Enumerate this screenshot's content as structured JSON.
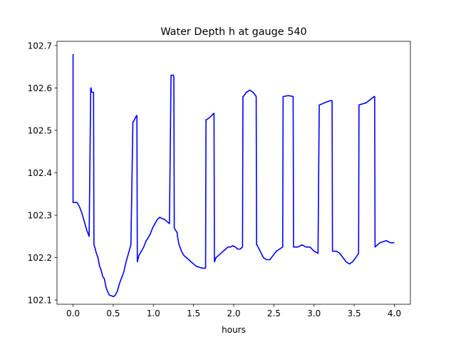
{
  "chart_data": {
    "type": "line",
    "title": "Water Depth h at gauge 540",
    "xlabel": "hours",
    "ylabel": "",
    "xlim": [
      -0.2,
      4.2
    ],
    "ylim": [
      102.09,
      102.71
    ],
    "xticks": [
      0.0,
      0.5,
      1.0,
      1.5,
      2.0,
      2.5,
      3.0,
      3.5,
      4.0
    ],
    "xtick_labels": [
      "0.0",
      "0.5",
      "1.0",
      "1.5",
      "2.0",
      "2.5",
      "3.0",
      "3.5",
      "4.0"
    ],
    "yticks": [
      102.1,
      102.2,
      102.3,
      102.4,
      102.5,
      102.6,
      102.7
    ],
    "ytick_labels": [
      "102.1",
      "102.2",
      "102.3",
      "102.4",
      "102.5",
      "102.6",
      "102.7"
    ],
    "grid": false,
    "line_color": "#0000ff",
    "series": [
      {
        "x": [
          0.0,
          0.0,
          0.01,
          0.05,
          0.08,
          0.11,
          0.14,
          0.17,
          0.2,
          0.22,
          0.225,
          0.23,
          0.255,
          0.26,
          0.27,
          0.29,
          0.31,
          0.33,
          0.35,
          0.37,
          0.39,
          0.41,
          0.43,
          0.45,
          0.47,
          0.48,
          0.5,
          0.52,
          0.55,
          0.58,
          0.61,
          0.63,
          0.66,
          0.69,
          0.72,
          0.745,
          0.75,
          0.79,
          0.795,
          0.8,
          0.82,
          0.85,
          0.88,
          0.91,
          0.93,
          0.96,
          0.99,
          1.02,
          1.05,
          1.08,
          1.11,
          1.14,
          1.17,
          1.2,
          1.22,
          1.25,
          1.255,
          1.26,
          1.29,
          1.295,
          1.3,
          1.32,
          1.35,
          1.38,
          1.41,
          1.44,
          1.47,
          1.5,
          1.53,
          1.56,
          1.59,
          1.62,
          1.65,
          1.655,
          1.66,
          1.7,
          1.75,
          1.755,
          1.76,
          1.78,
          1.81,
          1.84,
          1.87,
          1.9,
          1.93,
          1.96,
          1.99,
          2.02,
          2.05,
          2.08,
          2.11,
          2.115,
          2.12,
          2.16,
          2.2,
          2.24,
          2.28,
          2.285,
          2.29,
          2.33,
          2.37,
          2.41,
          2.45,
          2.49,
          2.53,
          2.57,
          2.61,
          2.615,
          2.62,
          2.68,
          2.74,
          2.745,
          2.75,
          2.8,
          2.85,
          2.9,
          2.95,
          3.0,
          3.05,
          3.065,
          3.07,
          3.13,
          3.2,
          3.225,
          3.23,
          3.28,
          3.32,
          3.36,
          3.4,
          3.44,
          3.48,
          3.52,
          3.555,
          3.56,
          3.65,
          3.75,
          3.755,
          3.76,
          3.82,
          3.9,
          3.95,
          4.0
        ],
        "y": [
          102.68,
          102.33,
          102.33,
          102.33,
          102.32,
          102.305,
          102.285,
          102.265,
          102.25,
          102.6,
          102.6,
          102.59,
          102.59,
          102.23,
          102.225,
          102.21,
          102.2,
          102.18,
          102.17,
          102.155,
          102.15,
          102.13,
          102.12,
          102.112,
          102.11,
          102.11,
          102.108,
          102.11,
          102.12,
          102.14,
          102.155,
          102.165,
          102.19,
          102.21,
          102.23,
          102.52,
          102.52,
          102.535,
          102.535,
          102.19,
          102.205,
          102.215,
          102.225,
          102.24,
          102.245,
          102.255,
          102.27,
          102.28,
          102.29,
          102.295,
          102.292,
          102.29,
          102.285,
          102.28,
          102.63,
          102.63,
          102.625,
          102.27,
          102.26,
          102.26,
          102.25,
          102.23,
          102.215,
          102.205,
          102.2,
          102.195,
          102.19,
          102.185,
          102.18,
          102.178,
          102.176,
          102.175,
          102.175,
          102.525,
          102.525,
          102.53,
          102.54,
          102.54,
          102.19,
          102.2,
          102.205,
          102.21,
          102.215,
          102.22,
          102.225,
          102.225,
          102.228,
          102.225,
          102.22,
          102.22,
          102.225,
          102.58,
          102.58,
          102.59,
          102.595,
          102.59,
          102.58,
          102.23,
          102.23,
          102.215,
          102.2,
          102.195,
          102.195,
          102.205,
          102.215,
          102.22,
          102.225,
          102.58,
          102.58,
          102.582,
          102.58,
          102.225,
          102.225,
          102.225,
          102.23,
          102.225,
          102.225,
          102.215,
          102.21,
          102.56,
          102.56,
          102.565,
          102.57,
          102.57,
          102.215,
          102.215,
          102.21,
          102.2,
          102.19,
          102.185,
          102.19,
          102.2,
          102.21,
          102.56,
          102.565,
          102.58,
          102.58,
          102.225,
          102.235,
          102.24,
          102.235,
          102.235
        ]
      }
    ]
  }
}
